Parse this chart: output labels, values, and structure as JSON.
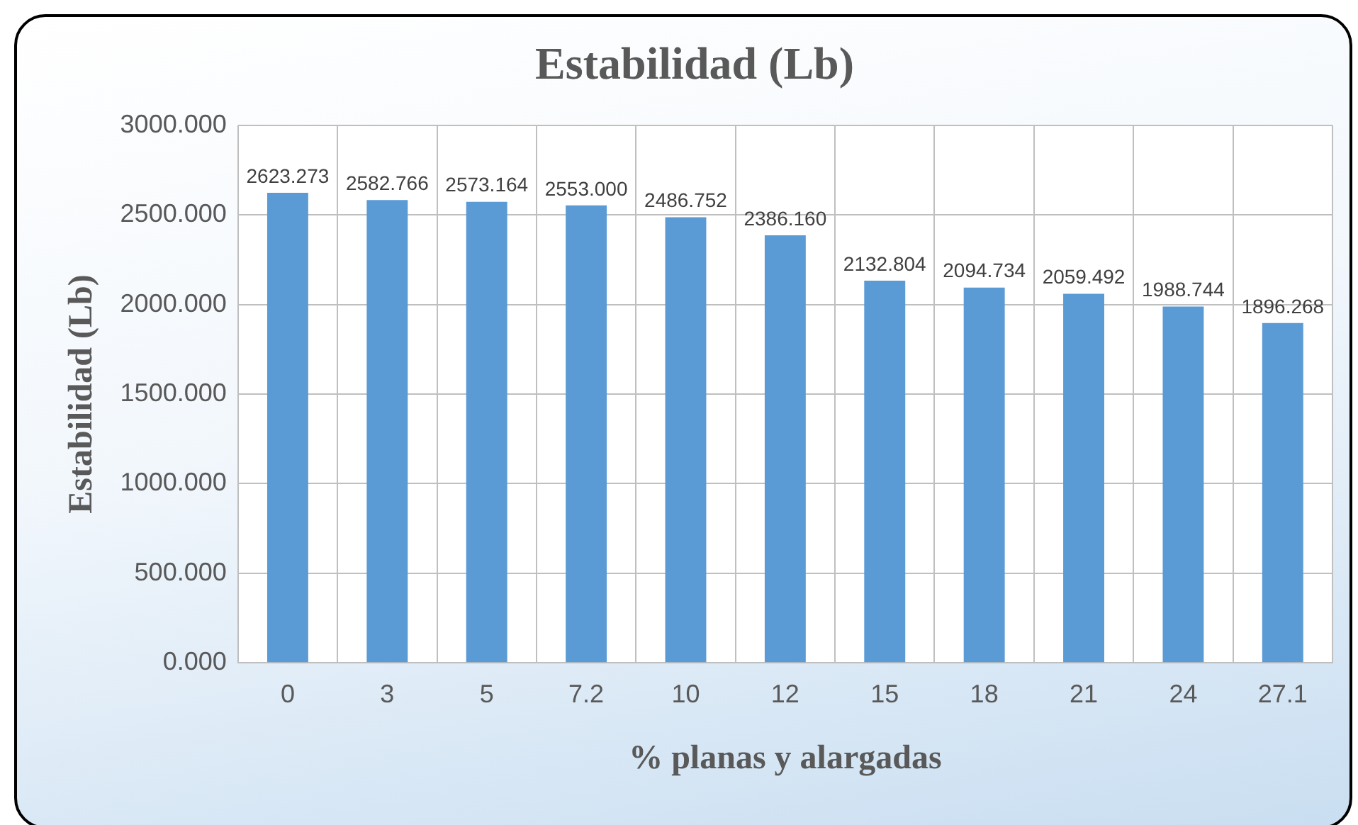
{
  "chart_data": {
    "type": "bar",
    "title": "Estabilidad (Lb)",
    "xlabel": "% planas y alargadas",
    "ylabel": "Estabilidad (Lb)",
    "categories": [
      "0",
      "3",
      "5",
      "7.2",
      "10",
      "12",
      "15",
      "18",
      "21",
      "24",
      "27.1"
    ],
    "values": [
      2623.273,
      2582.766,
      2573.164,
      2553.0,
      2486.752,
      2386.16,
      2132.804,
      2094.734,
      2059.492,
      1988.744,
      1896.268
    ],
    "value_labels": [
      "2623.273",
      "2582.766",
      "2573.164",
      "2553.000",
      "2486.752",
      "2386.160",
      "2132.804",
      "2094.734",
      "2059.492",
      "1988.744",
      "1896.268"
    ],
    "color": "#5b9bd5",
    "ylim": [
      0,
      3000
    ],
    "yticks": [
      {
        "value": 0,
        "label": "0.000"
      },
      {
        "value": 500,
        "label": "500.000"
      },
      {
        "value": 1000,
        "label": "1000.000"
      },
      {
        "value": 1500,
        "label": "1500.000"
      },
      {
        "value": 2000,
        "label": "2000.000"
      },
      {
        "value": 2500,
        "label": "2500.000"
      },
      {
        "value": 3000,
        "label": "3000.000"
      }
    ],
    "grid": true
  }
}
